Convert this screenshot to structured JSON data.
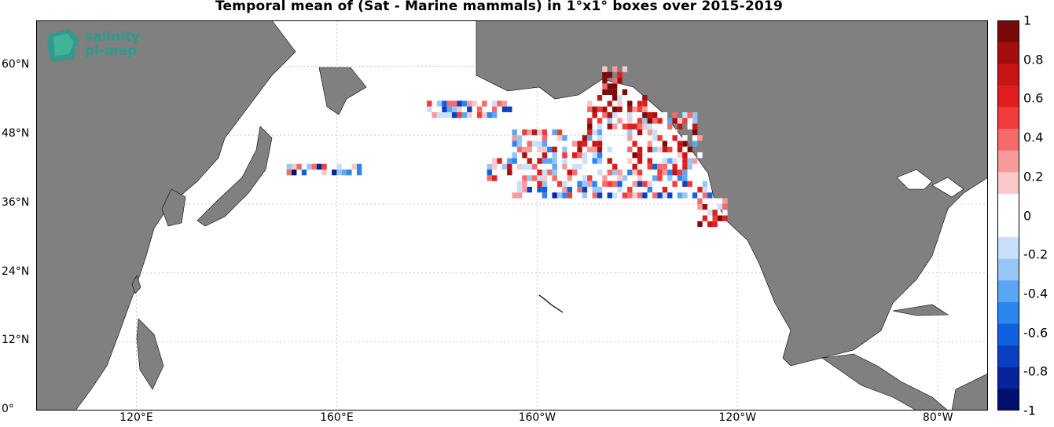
{
  "title": "Temporal mean of (Sat - Marine mammals) in 1°x1° boxes over 2015-2019",
  "logo": {
    "line1": "salinity",
    "line2": "pi-mep"
  },
  "lat_ticks": [
    {
      "label": "60°N",
      "value": 60
    },
    {
      "label": "48°N",
      "value": 48
    },
    {
      "label": "36°N",
      "value": 36
    },
    {
      "label": "24°N",
      "value": 24
    },
    {
      "label": "12°N",
      "value": 12
    },
    {
      "label": "0°",
      "value": 0
    }
  ],
  "lon_ticks": [
    {
      "label": "120°E",
      "value": 120
    },
    {
      "label": "160°E",
      "value": 160
    },
    {
      "label": "160°W",
      "value": 200
    },
    {
      "label": "120°W",
      "value": 240
    },
    {
      "label": "80°W",
      "value": 280
    }
  ],
  "colorbar": {
    "ticks": [
      "1",
      "0.8",
      "0.6",
      "0.4",
      "0.2",
      "0",
      "-0.2",
      "-0.4",
      "-0.6",
      "-0.8",
      "-1"
    ],
    "range": [
      -1,
      1
    ],
    "colors": [
      "#7a0a0a",
      "#a30f0f",
      "#c71414",
      "#e01e1e",
      "#f23b3b",
      "#f56a6a",
      "#f79a9a",
      "#fac8c8",
      "#ffffff",
      "#ffffff",
      "#c8e0fa",
      "#97c6f7",
      "#5aa6f5",
      "#2a86f0",
      "#1060e0",
      "#0a40c0",
      "#08249a",
      "#000e70"
    ]
  },
  "map_extent": {
    "lon": [
      100,
      290
    ],
    "lat": [
      0,
      68
    ]
  },
  "colors": {
    "land": "#808080",
    "ocean": "#ffffff",
    "grid": "#c8c8c8"
  }
}
